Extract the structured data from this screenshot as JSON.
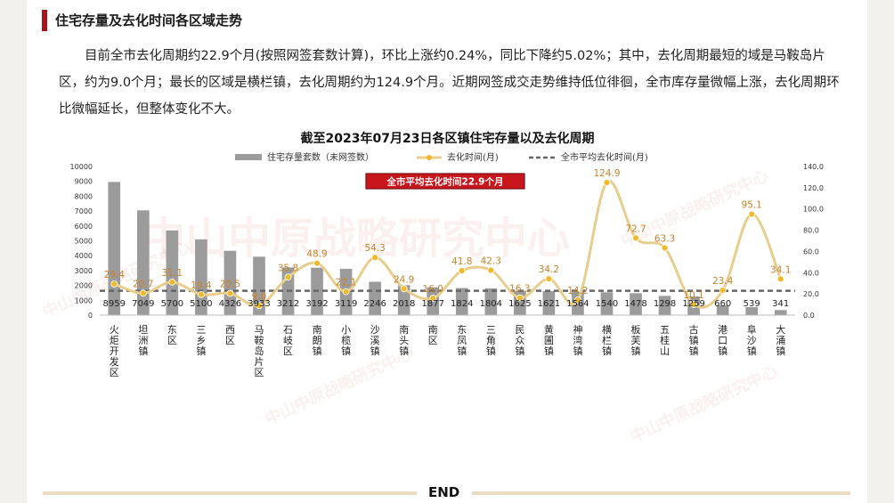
{
  "header": {
    "title": "住宅存量及去化时间各区域走势",
    "paragraph": "目前全市去化周期约22.9个月(按照网签套数计算)，环比上涨约0.24%，同比下降约5.02%；其中，去化周期最短的域是马鞍岛片区，约为9.0个月；最长的区域是横栏镇，去化周期约为124.9个月。近期网签成交走势维持低位徘徊，全市库存量微幅上涨，去化周期环比微幅延长，但整体变化不大。"
  },
  "watermark": {
    "big": "中山中原战略研究中心",
    "small": "中山中原战略研究中心"
  },
  "footer": {
    "end": "END"
  },
  "chart_data": {
    "type": "bar",
    "title": "截至2023年07月23日各区镇住宅存量以及去化周期",
    "categories": [
      "火炬开发区",
      "坦洲镇",
      "东区",
      "三乡镇",
      "西区",
      "马鞍岛片区",
      "石岐区",
      "南朗镇",
      "小榄镇",
      "沙溪镇",
      "南头镇",
      "南区",
      "东凤镇",
      "三角镇",
      "民众镇",
      "黄圃镇",
      "神湾镇",
      "横栏镇",
      "板芙镇",
      "五桂山",
      "古镇镇",
      "港口镇",
      "阜沙镇",
      "大涌镇"
    ],
    "series": [
      {
        "name": "住宅存量套数（未网签数）",
        "type": "bar",
        "axis": "left",
        "color": "#9b9b9b",
        "values": [
          8959,
          7049,
          5700,
          5100,
          4326,
          3933,
          3212,
          3192,
          3119,
          2246,
          2018,
          1877,
          1824,
          1804,
          1625,
          1621,
          1564,
          1540,
          1478,
          1298,
          1259,
          660,
          539,
          341
        ]
      },
      {
        "name": "去化时间(月)",
        "type": "line",
        "axis": "right",
        "color": "#e8cd8c",
        "values": [
          29.4,
          20.7,
          31.1,
          19.4,
          20.5,
          9.0,
          35.8,
          48.9,
          22.1,
          54.3,
          24.9,
          16.0,
          41.8,
          42.3,
          16.3,
          34.2,
          14.2,
          124.9,
          72.7,
          63.3,
          10.1,
          23.4,
          95.1,
          34.1
        ]
      },
      {
        "name": "全市平均去化时间(月)",
        "type": "line",
        "axis": "right",
        "color": "#666666",
        "dashed": true,
        "values": [
          22.9,
          22.9,
          22.9,
          22.9,
          22.9,
          22.9,
          22.9,
          22.9,
          22.9,
          22.9,
          22.9,
          22.9,
          22.9,
          22.9,
          22.9,
          22.9,
          22.9,
          22.9,
          22.9,
          22.9,
          22.9,
          22.9,
          22.9,
          22.9
        ]
      }
    ],
    "y_left": {
      "ticks": [
        0,
        1000,
        2000,
        3000,
        4000,
        5000,
        6000,
        7000,
        8000,
        9000,
        10000
      ],
      "ylim": [
        0,
        10000
      ]
    },
    "y_right": {
      "ticks": [
        "0.0",
        "20.0",
        "40.0",
        "60.0",
        "80.0",
        "100.0",
        "120.0",
        "140.0"
      ],
      "ylim": [
        0,
        140
      ]
    },
    "annotation": "全市平均去化时间22.9个月",
    "legend_position": "top",
    "colors": {
      "accent": "#a8141c",
      "annotation_bg": "#c8161d"
    }
  }
}
